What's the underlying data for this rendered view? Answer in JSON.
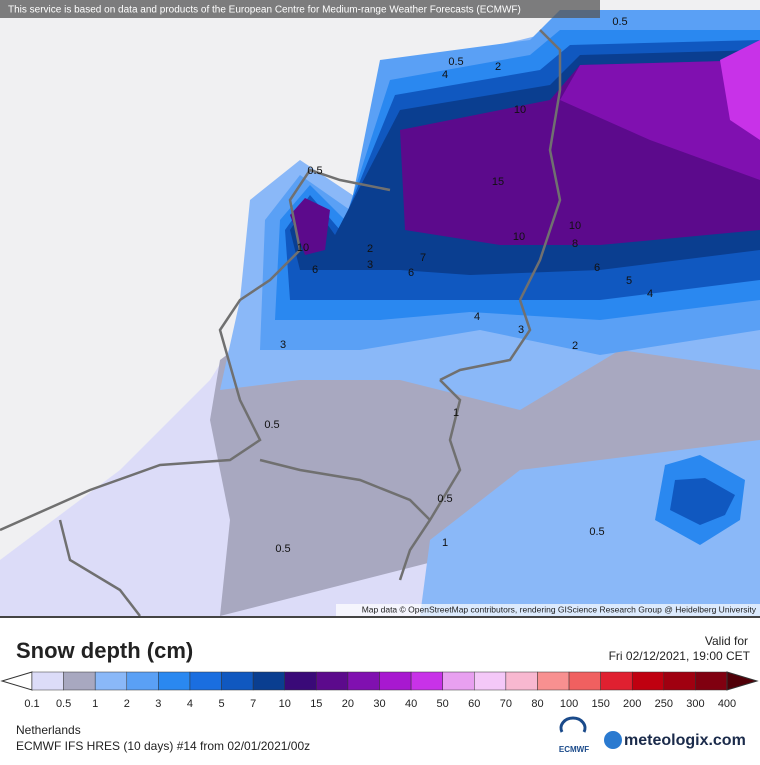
{
  "header": {
    "notice": "This service is based on data and products of the European Centre for Medium-range Weather Forecasts (ECMWF)"
  },
  "map": {
    "attribution": "Map data © OpenStreetMap contributors, rendering GIScience Research Group @ Heidelberg University",
    "contour_labels": [
      "0.5",
      "0.5",
      "4",
      "2",
      "10",
      "15",
      "0.5",
      "10",
      "6",
      "2",
      "3",
      "6",
      "7",
      "10",
      "10",
      "8",
      "6",
      "5",
      "4",
      "4",
      "3",
      "2",
      "3",
      "1",
      "0.5",
      "0.5",
      "0.5",
      "0.5",
      "1"
    ]
  },
  "legend": {
    "title": "Snow depth (cm)",
    "valid_label": "Valid for",
    "valid_time": "Fri 02/12/2021, 19:00 CET",
    "ticks": [
      0.1,
      0.5,
      1,
      2,
      3,
      4,
      5,
      7,
      10,
      15,
      20,
      30,
      40,
      50,
      60,
      70,
      80,
      100,
      150,
      200,
      250,
      300,
      400
    ],
    "colors": [
      "#dcdcf8",
      "#a8a8c0",
      "#8ab8f8",
      "#5aa0f5",
      "#2a88f0",
      "#1a6ee0",
      "#1058c0",
      "#0a3e90",
      "#3a0a78",
      "#5c0a8c",
      "#8010b0",
      "#a818d0",
      "#c832e8",
      "#e8a0f0",
      "#f4c8f8",
      "#f8b8d0",
      "#f89090",
      "#f06060",
      "#e02030",
      "#c00010",
      "#a00010",
      "#800010"
    ],
    "under_color": "#ffffff",
    "over_color": "#500008"
  },
  "footer": {
    "region": "Netherlands",
    "model": "ECMWF IFS HRES (10 days) #14 from  02/01/2021/00z",
    "ecmwf_logo": "ECMWF",
    "brand": "meteologix.com"
  }
}
